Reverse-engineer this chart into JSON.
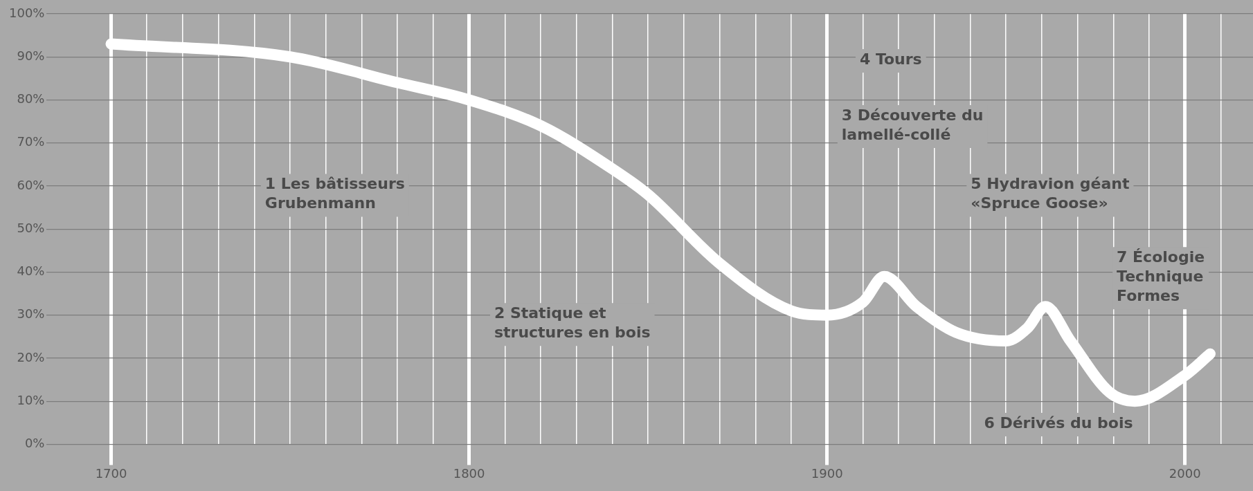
{
  "chart_data": {
    "type": "line",
    "x": [
      1700,
      1750,
      1780,
      1800,
      1820,
      1840,
      1850,
      1870,
      1890,
      1900,
      1910,
      1916,
      1925,
      1936,
      1950,
      1956,
      1961,
      1968,
      1979,
      1986,
      2000,
      2007
    ],
    "series": [
      {
        "color": "#ffffff",
        "values": [
          93,
          90,
          84,
          80,
          74,
          64,
          58,
          42,
          31,
          30,
          33,
          39,
          32,
          26,
          24,
          27,
          32,
          24,
          12,
          10,
          16,
          21
        ]
      }
    ],
    "xlim": [
      1682,
      2019
    ],
    "xticks": [
      {
        "value": 1700,
        "label": "1700"
      },
      {
        "value": 1710,
        "label": null
      },
      {
        "value": 1720,
        "label": null
      },
      {
        "value": 1730,
        "label": null
      },
      {
        "value": 1740,
        "label": null
      },
      {
        "value": 1750,
        "label": null
      },
      {
        "value": 1760,
        "label": null
      },
      {
        "value": 1770,
        "label": null
      },
      {
        "value": 1780,
        "label": null
      },
      {
        "value": 1790,
        "label": null
      },
      {
        "value": 1800,
        "label": "1800"
      },
      {
        "value": 1810,
        "label": null
      },
      {
        "value": 1820,
        "label": null
      },
      {
        "value": 1830,
        "label": null
      },
      {
        "value": 1840,
        "label": null
      },
      {
        "value": 1850,
        "label": null
      },
      {
        "value": 1860,
        "label": null
      },
      {
        "value": 1870,
        "label": null
      },
      {
        "value": 1880,
        "label": null
      },
      {
        "value": 1890,
        "label": null
      },
      {
        "value": 1900,
        "label": "1900"
      },
      {
        "value": 1910,
        "label": null
      },
      {
        "value": 1920,
        "label": null
      },
      {
        "value": 1930,
        "label": null
      },
      {
        "value": 1940,
        "label": null
      },
      {
        "value": 1950,
        "label": null
      },
      {
        "value": 1960,
        "label": null
      },
      {
        "value": 1970,
        "label": null
      },
      {
        "value": 1980,
        "label": null
      },
      {
        "value": 1990,
        "label": null
      },
      {
        "value": 2000,
        "label": "2000"
      },
      {
        "value": 2010,
        "label": null
      }
    ],
    "ylim": [
      0,
      100
    ],
    "yticks": [
      {
        "value": 0,
        "label": "0%"
      },
      {
        "value": 10,
        "label": "10%"
      },
      {
        "value": 20,
        "label": "20%"
      },
      {
        "value": 30,
        "label": "30%"
      },
      {
        "value": 40,
        "label": "40%"
      },
      {
        "value": 50,
        "label": "50%"
      },
      {
        "value": 60,
        "label": "60%"
      },
      {
        "value": 70,
        "label": "70%"
      },
      {
        "value": 80,
        "label": "80%"
      },
      {
        "value": 90,
        "label": "90%"
      },
      {
        "value": 100,
        "label": "100%"
      }
    ],
    "grid": true,
    "marker": "none",
    "line_style": "solid",
    "annotations": [
      "1 Les bâtisseurs\nGrubenmann",
      "2 Statique et\nstructures en bois",
      "3 Découverte du\nlamellé-collé",
      "4 Tours",
      "5 Hydravion géant\n«Spruce Goose»",
      "6 Dérivés du bois",
      "7 Écologie\nTechnique\nFormes"
    ]
  }
}
